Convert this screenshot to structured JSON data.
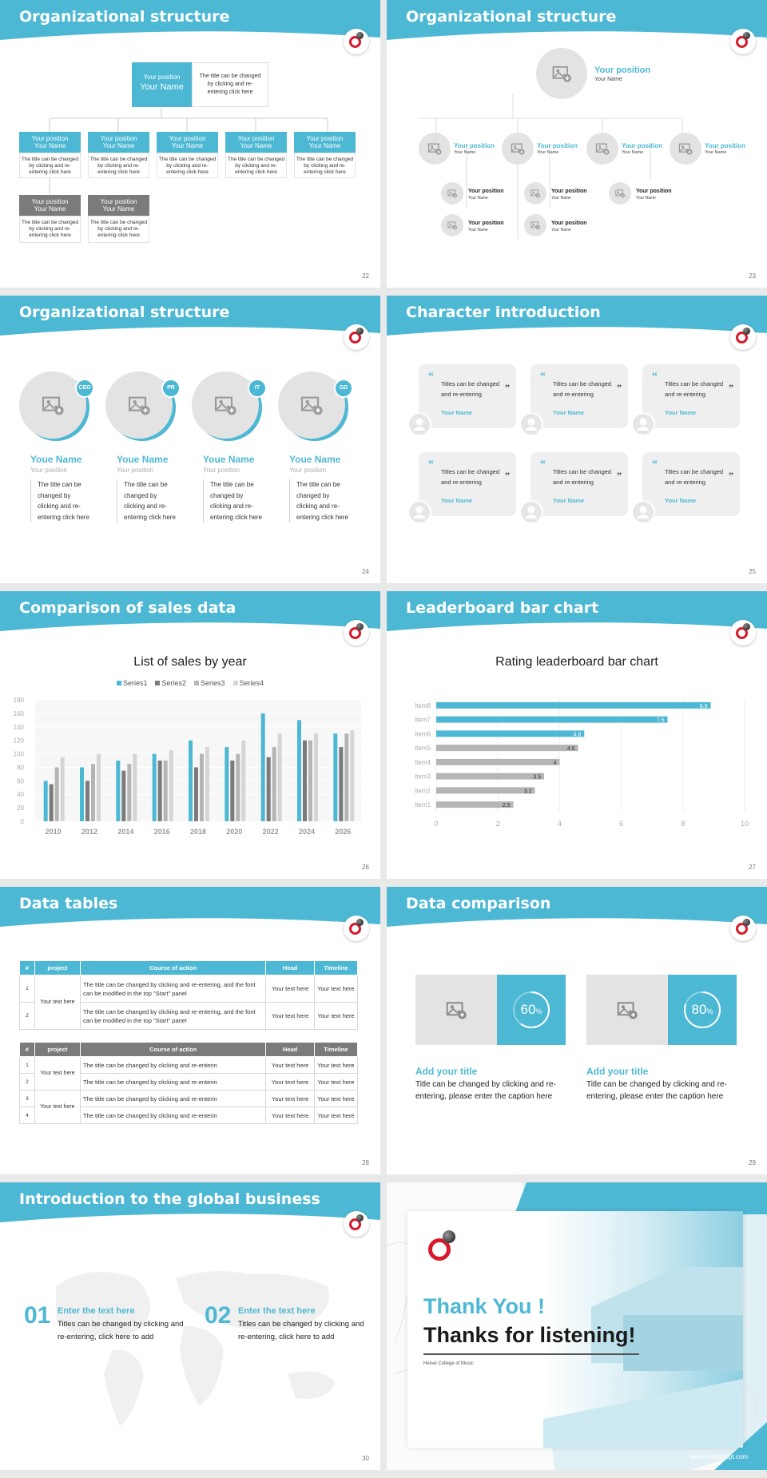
{
  "slides": [
    {
      "title": "Organizational structure",
      "page": "22",
      "top_position": "Your position",
      "top_name": "Your Name",
      "top_desc": "The title can be changed by clicking and re-entering click here",
      "row1": [
        {
          "pos": "Your position",
          "name": "Your Name",
          "desc": "The title can be changed by clicking and re-entering click here"
        },
        {
          "pos": "Your position",
          "name": "Your Name",
          "desc": "The title can be changed by clicking and re-entering click here"
        },
        {
          "pos": "Your position",
          "name": "Your Name",
          "desc": "The title can be changed by clicking and re-entering click here"
        },
        {
          "pos": "Your position",
          "name": "Your Name",
          "desc": "The title can be changed by clicking and re-entering click here"
        },
        {
          "pos": "Your position",
          "name": "Your Name",
          "desc": "The title can be changed by clicking and re-entering click here"
        }
      ],
      "row2": [
        {
          "pos": "Your position",
          "name": "Your Name",
          "desc": "The title can be changed by clicking and re-entering click here"
        },
        {
          "pos": "Your position",
          "name": "Your Name",
          "desc": "The title can be changed by clicking and re-entering click here"
        }
      ]
    },
    {
      "title": "Organizational structure",
      "page": "23",
      "top_position": "Your position",
      "top_name": "Your Name",
      "mid": [
        {
          "pos": "Your position",
          "name": "Your Name"
        },
        {
          "pos": "Your position",
          "name": "Your Name"
        },
        {
          "pos": "Your position",
          "name": "Your Name"
        },
        {
          "pos": "Your position",
          "name": "Your Name"
        }
      ],
      "sub": [
        {
          "pos": "Your position",
          "name": "Your Name"
        },
        {
          "pos": "Your position",
          "name": "Your Name"
        },
        {
          "pos": "Your position",
          "name": "Your Name"
        },
        {
          "pos": "Your position",
          "name": "Your Name"
        },
        {
          "pos": "Your position",
          "name": "Your Name"
        }
      ]
    },
    {
      "title": "Organizational structure",
      "page": "24",
      "people": [
        {
          "badge": "CEO",
          "name": "Youe Name",
          "pos": "Your position",
          "desc": "The title can be changed by clicking and re-entering click here"
        },
        {
          "badge": "PR",
          "name": "Youe Name",
          "pos": "Your position",
          "desc": "The title can be changed by clicking and re-entering click here"
        },
        {
          "badge": "IT",
          "name": "Youe Name",
          "pos": "Your position",
          "desc": "The title can be changed by clicking and re-entering click here"
        },
        {
          "badge": "GD",
          "name": "Youe Name",
          "pos": "Your position",
          "desc": "The title can be changed by clicking and re-entering click here"
        }
      ]
    },
    {
      "title": "Character introduction",
      "page": "25",
      "cards": [
        {
          "text": "Titles can be changed and re-entering",
          "name": "Your Name"
        },
        {
          "text": "Titles can be changed and re-entering",
          "name": "Your Name"
        },
        {
          "text": "Titles can be changed and re-entering",
          "name": "Your Name"
        },
        {
          "text": "Titles can be changed and re-entering",
          "name": "Your Name"
        },
        {
          "text": "Titles can be changed and re-entering",
          "name": "Your Name"
        },
        {
          "text": "Titles can be changed and re-entering",
          "name": "Your Name"
        }
      ]
    },
    {
      "title": "Comparison of sales data",
      "page": "26"
    },
    {
      "title": "Leaderboard bar chart",
      "page": "27"
    },
    {
      "title": "Data tables",
      "page": "28",
      "t1_head": [
        "#",
        "project",
        "Course of action",
        "Head",
        "Timeline"
      ],
      "t1_rows": [
        {
          "n": "1",
          "act": "The title can be changed by clicking and re-entering, and the font can be modified in the top \"Start\" panel",
          "head": "Your text here",
          "time": "Your text here"
        },
        {
          "n": "2",
          "act": "The title can be changed by clicking and re-entering, and the font can be modified in the top \"Start\" panel",
          "head": "Your text here",
          "time": "Your text here"
        }
      ],
      "t1_project": "Your text here",
      "t2_head": [
        "#",
        "project",
        "Course of action",
        "Head",
        "Timeline"
      ],
      "t2_rows": [
        {
          "n": "1",
          "act": "The title can be changed by clicking and re-enterin",
          "head": "Your text here",
          "time": "Your text here"
        },
        {
          "n": "2",
          "act": "The title can be changed by clicking and re-enterin",
          "head": "Your text here",
          "time": "Your text here"
        },
        {
          "n": "3",
          "act": "The title can be changed by clicking and re-enterin",
          "head": "Your text here",
          "time": "Your text here"
        },
        {
          "n": "4",
          "act": "The title can be changed by clicking and re-enterin",
          "head": "Your text here",
          "time": "Your text here"
        }
      ],
      "t2_project_a": "Your text here",
      "t2_project_b": "Your text here"
    },
    {
      "title": "Data comparison",
      "page": "29",
      "items": [
        {
          "percent": "60",
          "unit": "%",
          "value": 0.6,
          "title": "Add your title",
          "desc": "Title can be changed by clicking and re-entering, please enter the caption here"
        },
        {
          "percent": "80",
          "unit": "%",
          "value": 0.8,
          "title": "Add your title",
          "desc": "Title can be changed by clicking and re-entering, please enter the caption here"
        }
      ]
    },
    {
      "title": "Introduction to the global business",
      "page": "30",
      "items": [
        {
          "num": "01",
          "title": "Enter the text here",
          "desc": "Titles can be changed by clicking and re-entering, click here to add"
        },
        {
          "num": "02",
          "title": "Enter the text here",
          "desc": "Titles can be changed by clicking and re-entering, click here to add"
        }
      ]
    },
    {
      "thanks": "Thank You !",
      "listening": "Thanks for listening!",
      "college": "Heisei College of Music",
      "url": "www.collegeppt.com"
    }
  ],
  "chart_data": [
    {
      "type": "bar",
      "title": "List of sales by year",
      "categories": [
        "2010",
        "2012",
        "2014",
        "2016",
        "2018",
        "2020",
        "2022",
        "2024",
        "2026"
      ],
      "series": [
        {
          "name": "Series1",
          "values": [
            60,
            80,
            90,
            100,
            120,
            110,
            160,
            150,
            130
          ]
        },
        {
          "name": "Series2",
          "values": [
            55,
            60,
            75,
            90,
            80,
            90,
            95,
            120,
            110
          ]
        },
        {
          "name": "Series3",
          "values": [
            80,
            85,
            85,
            90,
            100,
            100,
            110,
            120,
            130
          ]
        },
        {
          "name": "Series4",
          "values": [
            95,
            100,
            100,
            105,
            110,
            120,
            130,
            130,
            135
          ]
        }
      ],
      "ylim": [
        0,
        180
      ],
      "yticks": [
        "0",
        "20",
        "40",
        "60",
        "80",
        "100",
        "120",
        "140",
        "160",
        "180"
      ],
      "legend": "top",
      "colors": [
        "#4db8d4",
        "#7b7b7b",
        "#b5b5b5",
        "#d5d5d5"
      ]
    },
    {
      "type": "bar",
      "orientation": "horizontal",
      "title": "Rating leaderboard bar chart",
      "categories": [
        "Item8",
        "Item7",
        "Item6",
        "Item5",
        "Item4",
        "Item3",
        "Item2",
        "Item1"
      ],
      "values": [
        8.9,
        7.5,
        4.8,
        4.6,
        4,
        3.5,
        3.2,
        2.5
      ],
      "labels": [
        "8.9",
        "7.5",
        "4.8",
        "4.6",
        "4",
        "3.5",
        "3.2",
        "2.5"
      ],
      "xlim": [
        0,
        10
      ],
      "xticks": [
        "0",
        "2",
        "4",
        "6",
        "8",
        "10"
      ],
      "colors": [
        "#4db8d4",
        "#4db8d4",
        "#4db8d4",
        "#b5b5b5",
        "#b5b5b5",
        "#b5b5b5",
        "#b5b5b5",
        "#b5b5b5"
      ]
    }
  ],
  "colors": {
    "accent": "#4db8d4",
    "gray": "#7b7b7b",
    "logo_red": "#d7192b"
  }
}
